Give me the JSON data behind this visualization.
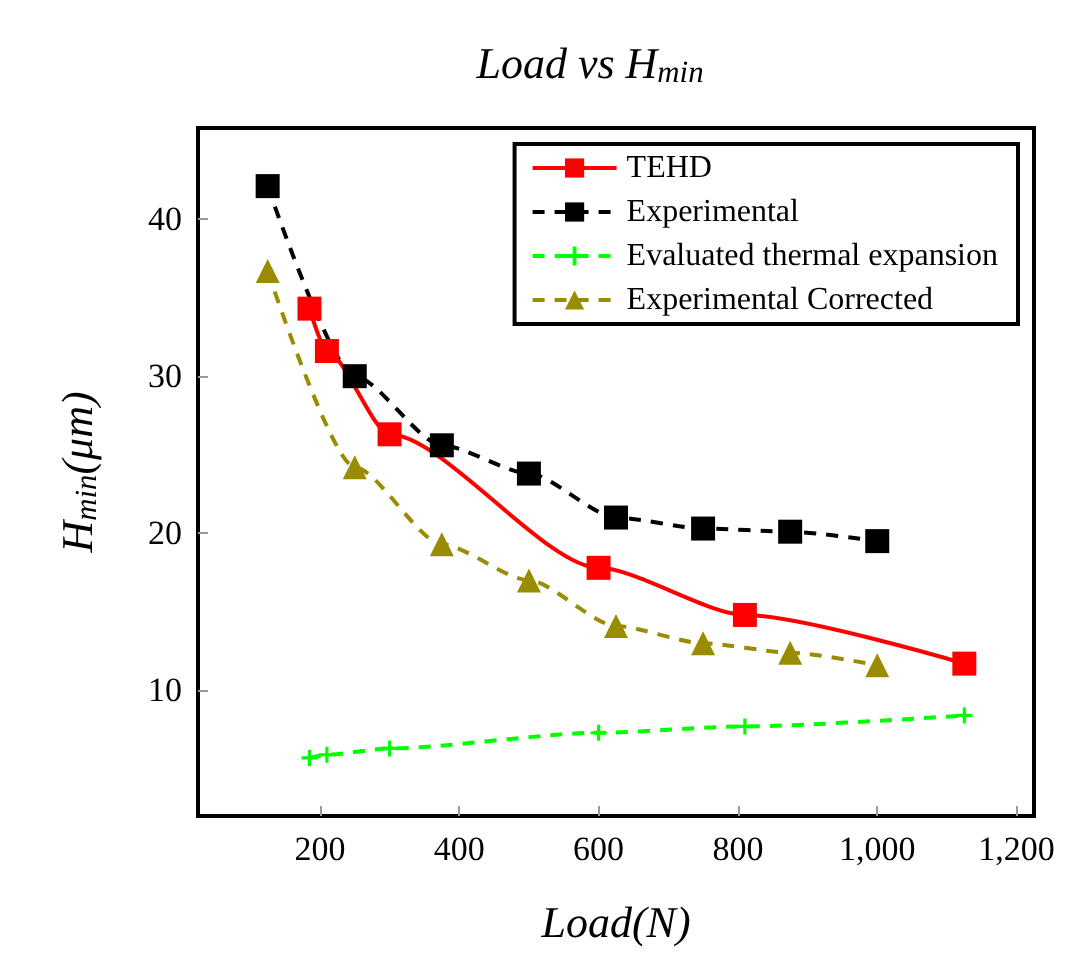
{
  "chart_data": {
    "type": "line",
    "title": "Load vs H$_{min}$",
    "xlabel": "Load(N)",
    "ylabel": "H$_{min}$(μm)",
    "xlim": [
      25,
      1225
    ],
    "xticks": [
      200,
      400,
      600,
      800,
      {
        "value": 1000,
        "label": "1,000"
      },
      {
        "value": 1200,
        "label": "1,200"
      }
    ],
    "ylim": [
      2,
      45.8
    ],
    "yticks": [
      10,
      20,
      30,
      40
    ],
    "grid": false,
    "legend": "top right",
    "series": [
      {
        "name": "TEHD",
        "color": "#ff0000",
        "marker": "square",
        "line_style": "solid",
        "x": [
          185,
          210,
          300,
          600,
          810,
          1125
        ],
        "values": [
          34.3,
          31.6,
          26.3,
          17.8,
          14.8,
          11.7
        ]
      },
      {
        "name": "Experimental",
        "color": "#000000",
        "marker": "square",
        "line_style": "dashed",
        "x": [
          125,
          250,
          375,
          500,
          625,
          750,
          875,
          1000
        ],
        "values": [
          42.1,
          30.0,
          25.6,
          23.8,
          21.0,
          20.3,
          20.1,
          19.5
        ]
      },
      {
        "name": "Evaluated thermal expansion",
        "color": "#00ff00",
        "marker": "cross",
        "line_style": "dashed",
        "x": [
          185,
          210,
          300,
          600,
          810,
          1125
        ],
        "values": [
          5.7,
          5.9,
          6.3,
          7.3,
          7.7,
          8.4
        ]
      },
      {
        "name": "Experimental Corrected",
        "color": "#9a8c00",
        "marker": "triangle",
        "line_style": "dashed",
        "x": [
          125,
          250,
          375,
          500,
          625,
          750,
          875,
          1000
        ],
        "values": [
          36.7,
          24.2,
          19.3,
          17.0,
          14.1,
          13.0,
          12.4,
          11.6
        ]
      }
    ]
  }
}
